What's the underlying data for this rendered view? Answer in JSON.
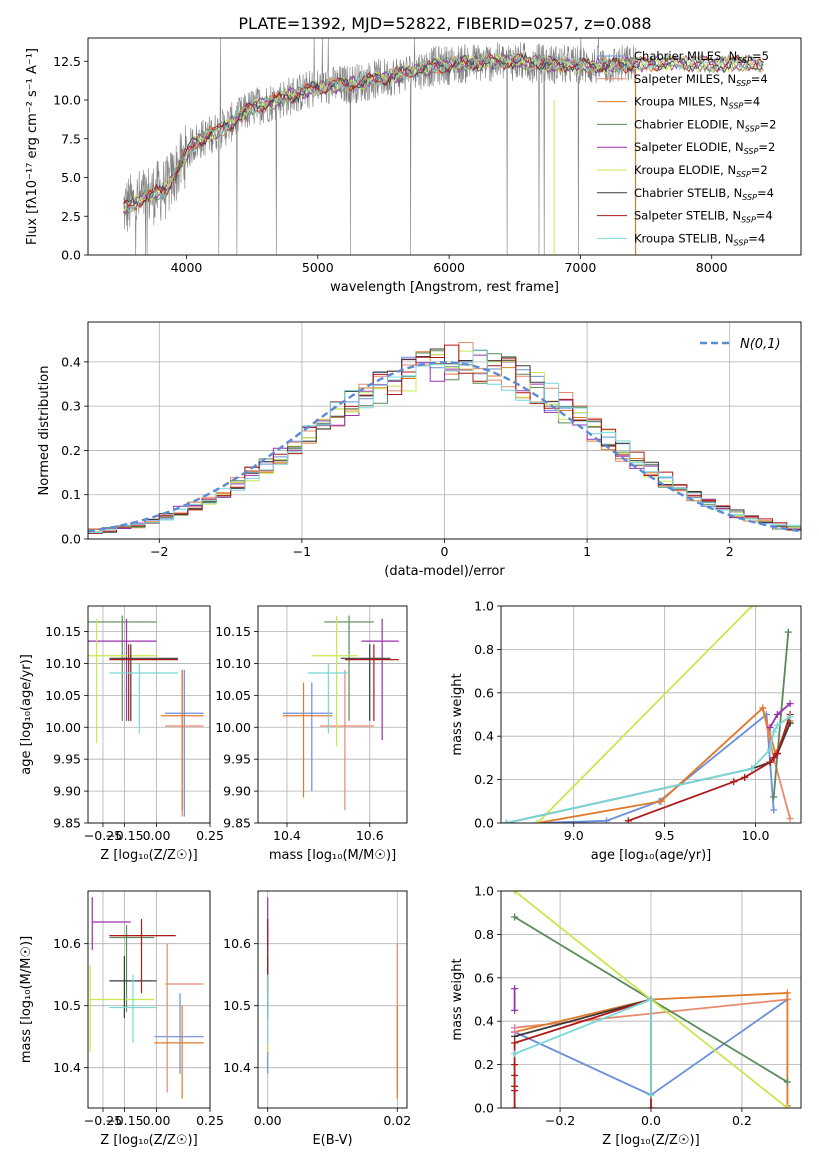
{
  "title": "PLATE=1392, MJD=52822, FIBERID=0257, z=0.088",
  "colors": {
    "Chabrier MILES": "#6a8fdc",
    "Salpeter MILES": "#e8896e",
    "Kroupa MILES": "#e07b2a",
    "Chabrier ELODIE": "#5a8a5a",
    "Salpeter ELODIE": "#9b30b0",
    "Kroupa ELODIE": "#c8e850",
    "Chabrier STELIB": "#3a3a3a",
    "Salpeter STELIB": "#b01818",
    "Kroupa STELIB": "#78d8d8",
    "pink": "#e87fb0",
    "normal": "#5b8bd8",
    "data": "#7f7f7f",
    "grid": "#b0b0b0"
  },
  "chart_data": [
    {
      "id": "spectrum",
      "type": "line",
      "xlabel": "wavelength [Angstrom, rest frame]",
      "ylabel": "Flux [fλ10⁻¹⁷ erg cm⁻² s⁻¹ A⁻¹]",
      "xlim": [
        3250,
        8680
      ],
      "ylim": [
        0,
        14
      ],
      "xticks": [
        4000,
        5000,
        6000,
        7000,
        8000
      ],
      "yticks": [
        0.0,
        2.5,
        5.0,
        7.5,
        10.0,
        12.5
      ],
      "grid": false,
      "legend_position": "top-right",
      "legend": [
        {
          "key": "Chabrier MILES",
          "label": "Chabrier MILES, N",
          "sub": "SSP",
          "tail": "=5"
        },
        {
          "key": "Salpeter MILES",
          "label": "Salpeter MILES, N",
          "sub": "SSP",
          "tail": "=4"
        },
        {
          "key": "Kroupa MILES",
          "label": "Kroupa MILES, N",
          "sub": "SSP",
          "tail": "=4"
        },
        {
          "key": "Chabrier ELODIE",
          "label": "Chabrier ELODIE, N",
          "sub": "SSP",
          "tail": "=2"
        },
        {
          "key": "Salpeter ELODIE",
          "label": "Salpeter ELODIE, N",
          "sub": "SSP",
          "tail": "=2"
        },
        {
          "key": "Kroupa ELODIE",
          "label": "Kroupa ELODIE, N",
          "sub": "SSP",
          "tail": "=2"
        },
        {
          "key": "Chabrier STELIB",
          "label": "Chabrier STELIB, N",
          "sub": "SSP",
          "tail": "=4"
        },
        {
          "key": "Salpeter STELIB",
          "label": "Salpeter STELIB, N",
          "sub": "SSP",
          "tail": "=4"
        },
        {
          "key": "Kroupa STELIB",
          "label": "Kroupa STELIB, N",
          "sub": "SSP",
          "tail": "=4"
        }
      ],
      "continuum_points": [
        [
          3520,
          3.0
        ],
        [
          3700,
          3.8
        ],
        [
          3850,
          4.3
        ],
        [
          3950,
          5.8
        ],
        [
          4050,
          7.2
        ],
        [
          4300,
          8.3
        ],
        [
          4500,
          9.5
        ],
        [
          4800,
          10.3
        ],
        [
          5000,
          10.8
        ],
        [
          5300,
          11.1
        ],
        [
          5600,
          11.6
        ],
        [
          5900,
          12.2
        ],
        [
          6200,
          12.4
        ],
        [
          6500,
          12.5
        ],
        [
          6800,
          12.3
        ],
        [
          7100,
          12.2
        ],
        [
          7400,
          12.3
        ],
        [
          7700,
          12.4
        ],
        [
          8000,
          12.3
        ],
        [
          8300,
          12.4
        ],
        [
          8400,
          12.2
        ]
      ],
      "model_start": 3520,
      "model_end": 8400,
      "data_start": 3520,
      "data_end": 7420
    },
    {
      "id": "residuals",
      "type": "histogram",
      "xlabel": "(data-model)/error",
      "ylabel": "Normed distribution",
      "xlim": [
        -2.5,
        2.5
      ],
      "ylim": [
        0,
        0.49
      ],
      "xticks": [
        -2,
        -1,
        0,
        1,
        2
      ],
      "yticks": [
        0.0,
        0.1,
        0.2,
        0.3,
        0.4
      ],
      "grid": true,
      "legend_position": "top-right",
      "legend": [
        {
          "key": "normal",
          "label": "N(0,1)"
        }
      ],
      "bin_width": 0.1
    },
    {
      "id": "age-vs-Z",
      "type": "errorbar",
      "xlabel": "Z [log₁₀(Z/Z☉)]",
      "ylabel": "age  [log₁₀(age/yr)]",
      "xlim": [
        -0.32,
        0.25
      ],
      "ylim": [
        9.85,
        10.19
      ],
      "xticks": [
        -0.25,
        -0.15,
        0.0,
        0.25
      ],
      "xticklabels": [
        "−0.25",
        "−0.15",
        "0.00",
        "0.25"
      ],
      "yticks": [
        9.85,
        9.9,
        9.95,
        10.0,
        10.05,
        10.1,
        10.15
      ],
      "grid": true,
      "points": [
        {
          "key": "Chabrier MILES",
          "x": 0.13,
          "xlo": 0.04,
          "xhi": 0.22,
          "y": 10.022,
          "ylo": 9.86,
          "yhi": 10.09
        },
        {
          "key": "Salpeter MILES",
          "x": 0.12,
          "xlo": 0.04,
          "xhi": 0.22,
          "y": 10.002,
          "ylo": 9.86,
          "yhi": 10.09
        },
        {
          "key": "Kroupa MILES",
          "x": 0.12,
          "xlo": 0.02,
          "xhi": 0.22,
          "y": 10.018,
          "ylo": 9.87,
          "yhi": 10.09
        },
        {
          "key": "Chabrier ELODIE",
          "x": -0.16,
          "xlo": -0.32,
          "xhi": -0.0,
          "y": 10.165,
          "ylo": 10.01,
          "yhi": 10.175
        },
        {
          "key": "Salpeter ELODIE",
          "x": -0.14,
          "xlo": -0.32,
          "xhi": 0.0,
          "y": 10.135,
          "ylo": 10.01,
          "yhi": 10.17
        },
        {
          "key": "Kroupa ELODIE",
          "x": -0.28,
          "xlo": -0.32,
          "xhi": 0.0,
          "y": 10.112,
          "ylo": 9.975,
          "yhi": 10.17
        },
        {
          "key": "Chabrier STELIB",
          "x": -0.12,
          "xlo": -0.22,
          "xhi": 0.1,
          "y": 10.108,
          "ylo": 10.01,
          "yhi": 10.13
        },
        {
          "key": "Salpeter STELIB",
          "x": -0.13,
          "xlo": -0.22,
          "xhi": 0.1,
          "y": 10.106,
          "ylo": 10.01,
          "yhi": 10.13
        },
        {
          "key": "Kroupa STELIB",
          "x": -0.08,
          "xlo": -0.22,
          "xhi": 0.1,
          "y": 10.085,
          "ylo": 9.99,
          "yhi": 10.1
        }
      ]
    },
    {
      "id": "age-vs-mass",
      "type": "errorbar",
      "xlabel": "mass [log₁₀(M/M☉)]",
      "ylabel": "",
      "xlim": [
        10.33,
        10.69
      ],
      "ylim": [
        9.85,
        10.19
      ],
      "xticks": [
        10.4,
        10.6
      ],
      "xticklabels": [
        "10.4",
        "10.6"
      ],
      "yticks": [
        9.85,
        9.9,
        9.95,
        10.0,
        10.05,
        10.1,
        10.15
      ],
      "grid": true,
      "points": [
        {
          "key": "Chabrier MILES",
          "x": 10.46,
          "xlo": 10.39,
          "xhi": 10.51,
          "y": 10.022,
          "ylo": 9.9,
          "yhi": 10.07
        },
        {
          "key": "Salpeter MILES",
          "x": 10.54,
          "xlo": 10.48,
          "xhi": 10.61,
          "y": 10.002,
          "ylo": 9.87,
          "yhi": 10.09
        },
        {
          "key": "Kroupa MILES",
          "x": 10.44,
          "xlo": 10.39,
          "xhi": 10.51,
          "y": 10.018,
          "ylo": 9.89,
          "yhi": 10.07
        },
        {
          "key": "Chabrier ELODIE",
          "x": 10.55,
          "xlo": 10.49,
          "xhi": 10.61,
          "y": 10.165,
          "ylo": 10.01,
          "yhi": 10.175
        },
        {
          "key": "Salpeter ELODIE",
          "x": 10.63,
          "xlo": 10.58,
          "xhi": 10.67,
          "y": 10.135,
          "ylo": 9.98,
          "yhi": 10.17
        },
        {
          "key": "Kroupa ELODIE",
          "x": 10.52,
          "xlo": 10.46,
          "xhi": 10.57,
          "y": 10.112,
          "ylo": 9.97,
          "yhi": 10.175
        },
        {
          "key": "Chabrier STELIB",
          "x": 10.6,
          "xlo": 10.53,
          "xhi": 10.65,
          "y": 10.108,
          "ylo": 10.01,
          "yhi": 10.13
        },
        {
          "key": "Salpeter STELIB",
          "x": 10.61,
          "xlo": 10.54,
          "xhi": 10.67,
          "y": 10.106,
          "ylo": 10.01,
          "yhi": 10.13
        },
        {
          "key": "Kroupa STELIB",
          "x": 10.5,
          "xlo": 10.45,
          "xhi": 10.55,
          "y": 10.085,
          "ylo": 9.99,
          "yhi": 10.1
        }
      ]
    },
    {
      "id": "weight-vs-age",
      "type": "line",
      "xlabel": "age  [log₁₀(age/yr)]",
      "ylabel": "mass weight",
      "xlim": [
        8.6,
        10.25
      ],
      "ylim": [
        0,
        1
      ],
      "xticks": [
        9.0,
        9.5,
        10.0
      ],
      "yticks": [
        0.0,
        0.2,
        0.4,
        0.6,
        0.8,
        1.0
      ],
      "grid": true,
      "series": [
        {
          "key": "Chabrier MILES",
          "x": [
            8.8,
            9.18,
            9.47,
            10.06,
            10.1
          ],
          "y": [
            0.0,
            0.01,
            0.1,
            0.5,
            0.06
          ]
        },
        {
          "key": "Salpeter MILES",
          "x": [
            9.48,
            10.04,
            10.1,
            10.19
          ],
          "y": [
            0.1,
            0.53,
            0.3,
            0.02
          ]
        },
        {
          "key": "Kroupa MILES",
          "x": [
            8.8,
            9.48,
            10.04,
            10.11,
            10.19
          ],
          "y": [
            0.0,
            0.1,
            0.53,
            0.32,
            0.47
          ]
        },
        {
          "key": "Chabrier ELODIE",
          "x": [
            10.1,
            10.18
          ],
          "y": [
            0.12,
            0.88
          ]
        },
        {
          "key": "Salpeter ELODIE",
          "x": [
            10.08,
            10.12,
            10.19
          ],
          "y": [
            0.44,
            0.5,
            0.55
          ]
        },
        {
          "key": "Kroupa ELODIE",
          "x": [
            8.8,
            9.98
          ],
          "y": [
            0.0,
            1.0
          ]
        },
        {
          "key": "Chabrier STELIB",
          "x": [
            8.63,
            9.98,
            10.08,
            10.1,
            10.12,
            10.19
          ],
          "y": [
            0.0,
            0.25,
            0.28,
            0.3,
            0.32,
            0.46
          ]
        },
        {
          "key": "Salpeter STELIB",
          "x": [
            9.3,
            9.88,
            9.94,
            10.08,
            10.1,
            10.12,
            10.19
          ],
          "y": [
            0.01,
            0.19,
            0.21,
            0.28,
            0.3,
            0.32,
            0.5
          ]
        },
        {
          "key": "Kroupa STELIB",
          "x": [
            8.63,
            9.98,
            10.08,
            10.1,
            10.12,
            10.19
          ],
          "y": [
            0.0,
            0.25,
            0.34,
            0.42,
            0.45,
            0.49
          ]
        }
      ]
    },
    {
      "id": "mass-vs-Z",
      "type": "errorbar",
      "xlabel": "Z [log₁₀(Z/Z☉)]",
      "ylabel": "mass [log₁₀(M/M☉)]",
      "xlim": [
        -0.32,
        0.25
      ],
      "ylim": [
        10.335,
        10.685
      ],
      "xticks": [
        -0.25,
        -0.15,
        0.0,
        0.25
      ],
      "xticklabels": [
        "−0.25",
        "−0.15",
        "0.00",
        "0.25"
      ],
      "yticks": [
        10.4,
        10.5,
        10.6
      ],
      "grid": true,
      "points": [
        {
          "key": "Chabrier MILES",
          "x": 0.11,
          "xlo": -0.01,
          "xhi": 0.22,
          "y": 10.45,
          "ylo": 10.39,
          "yhi": 10.52
        },
        {
          "key": "Salpeter MILES",
          "x": 0.05,
          "xlo": 0.04,
          "xhi": 0.22,
          "y": 10.535,
          "ylo": 10.36,
          "yhi": 10.6
        },
        {
          "key": "Kroupa MILES",
          "x": 0.12,
          "xlo": -0.01,
          "xhi": 0.22,
          "y": 10.44,
          "ylo": 10.35,
          "yhi": 10.5
        },
        {
          "key": "Chabrier ELODIE",
          "x": -0.14,
          "xlo": -0.22,
          "xhi": -0.01,
          "y": 10.61,
          "ylo": 10.49,
          "yhi": 10.63
        },
        {
          "key": "Salpeter ELODIE",
          "x": -0.3,
          "xlo": -0.3,
          "xhi": -0.12,
          "y": 10.635,
          "ylo": 10.59,
          "yhi": 10.675
        },
        {
          "key": "Kroupa ELODIE",
          "x": -0.31,
          "xlo": -0.31,
          "xhi": -0.01,
          "y": 10.51,
          "ylo": 10.425,
          "yhi": 10.565
        },
        {
          "key": "Chabrier STELIB",
          "x": -0.15,
          "xlo": -0.22,
          "xhi": 0.0,
          "y": 10.54,
          "ylo": 10.48,
          "yhi": 10.58
        },
        {
          "key": "Salpeter STELIB",
          "x": -0.07,
          "xlo": -0.22,
          "xhi": 0.09,
          "y": 10.613,
          "ylo": 10.52,
          "yhi": 10.64
        },
        {
          "key": "Kroupa STELIB",
          "x": -0.11,
          "xlo": -0.22,
          "xhi": 0.0,
          "y": 10.497,
          "ylo": 10.44,
          "yhi": 10.55
        }
      ]
    },
    {
      "id": "mass-vs-ebv",
      "type": "errorbar",
      "xlabel": "E(B-V)",
      "ylabel": "",
      "xlim": [
        -0.0015,
        0.0215
      ],
      "ylim": [
        10.335,
        10.685
      ],
      "xticks": [
        0.0,
        0.02
      ],
      "xticklabels": [
        "0.00",
        "0.02"
      ],
      "yticks": [
        10.4,
        10.5,
        10.6
      ],
      "grid": true,
      "points": [
        {
          "key": "Chabrier MILES",
          "x": 0.0,
          "xlo": 0.0,
          "xhi": 0.0,
          "y": 10.45,
          "ylo": 10.39,
          "yhi": 10.52
        },
        {
          "key": "Salpeter MILES",
          "x": 0.02,
          "xlo": 0.02,
          "xhi": 0.02,
          "y": 10.535,
          "ylo": 10.36,
          "yhi": 10.6
        },
        {
          "key": "Kroupa MILES",
          "x": 0.02,
          "xlo": 0.02,
          "xhi": 0.02,
          "y": 10.44,
          "ylo": 10.35,
          "yhi": 10.5
        },
        {
          "key": "Chabrier ELODIE",
          "x": 0.0,
          "xlo": 0.0,
          "xhi": 0.0,
          "y": 10.61,
          "ylo": 10.49,
          "yhi": 10.63
        },
        {
          "key": "Salpeter ELODIE",
          "x": 0.0,
          "xlo": 0.0,
          "xhi": 0.0,
          "y": 10.635,
          "ylo": 10.59,
          "yhi": 10.675
        },
        {
          "key": "Kroupa ELODIE",
          "x": 0.0,
          "xlo": 0.0,
          "xhi": 0.0,
          "y": 10.51,
          "ylo": 10.425,
          "yhi": 10.565
        },
        {
          "key": "Chabrier STELIB",
          "x": 0.0,
          "xlo": 0.0,
          "xhi": 0.0,
          "y": 10.54,
          "ylo": 10.48,
          "yhi": 10.58
        },
        {
          "key": "Salpeter STELIB",
          "x": 0.0,
          "xlo": 0.0,
          "xhi": 0.0,
          "y": 10.613,
          "ylo": 10.52,
          "yhi": 10.64
        },
        {
          "key": "Kroupa STELIB",
          "x": 0.0,
          "xlo": 0.0,
          "xhi": 0.0,
          "y": 10.497,
          "ylo": 10.44,
          "yhi": 10.55
        }
      ]
    },
    {
      "id": "weight-vs-Z",
      "type": "line",
      "xlabel": "Z [log₁₀(Z/Z☉)]",
      "ylabel": "mass weight",
      "xlim": [
        -0.33,
        0.33
      ],
      "ylim": [
        0,
        1
      ],
      "xticks": [
        -0.2,
        0.0,
        0.2
      ],
      "xticklabels": [
        "−0.2",
        "0.0",
        "0.2"
      ],
      "yticks": [
        0.0,
        0.2,
        0.4,
        0.6,
        0.8,
        1.0
      ],
      "grid": true,
      "series": [
        {
          "key": "Chabrier MILES",
          "x": [
            -0.3,
            0.0,
            0.3
          ],
          "y": [
            0.35,
            0.06,
            0.5
          ]
        },
        {
          "key": "Salpeter MILES",
          "x": [
            -0.3,
            0.3
          ],
          "y": [
            0.37,
            0.5
          ]
        },
        {
          "key": "Kroupa MILES",
          "x": [
            -0.3,
            0.0,
            0.3,
            0.3
          ],
          "y": [
            0.35,
            0.5,
            0.53,
            0.01
          ]
        },
        {
          "key": "Chabrier ELODIE",
          "x": [
            -0.3,
            0.3
          ],
          "y": [
            0.88,
            0.12
          ]
        },
        {
          "key": "Salpeter ELODIE",
          "x": [
            -0.3,
            -0.3
          ],
          "y": [
            0.45,
            0.55
          ]
        },
        {
          "key": "Kroupa ELODIE",
          "x": [
            -0.3,
            0.3
          ],
          "y": [
            1.0,
            0.0
          ]
        },
        {
          "key": "Chabrier STELIB",
          "x": [
            -0.3,
            0.0
          ],
          "y": [
            0.33,
            0.5
          ]
        },
        {
          "key": "Salpeter STELIB",
          "x": [
            -0.3,
            -0.3,
            0.0,
            0.0
          ],
          "y": [
            0.0,
            0.3,
            0.5,
            0.0
          ]
        },
        {
          "key": "Kroupa STELIB",
          "x": [
            -0.3,
            0.0,
            0.0
          ],
          "y": [
            0.25,
            0.5,
            0.06
          ]
        }
      ],
      "extra_marks": [
        {
          "key": "Salpeter STELIB",
          "x": -0.3,
          "y": [
            0.08,
            0.1,
            0.15,
            0.2
          ]
        },
        {
          "key": "pink",
          "x": -0.3,
          "y": [
            0.35,
            0.37
          ]
        }
      ]
    }
  ],
  "residual_lines": [
    "Chabrier MILES",
    "Salpeter MILES",
    "Kroupa MILES",
    "Chabrier ELODIE",
    "Salpeter ELODIE",
    "Kroupa ELODIE",
    "Chabrier STELIB",
    "Salpeter STELIB",
    "Kroupa STELIB"
  ]
}
